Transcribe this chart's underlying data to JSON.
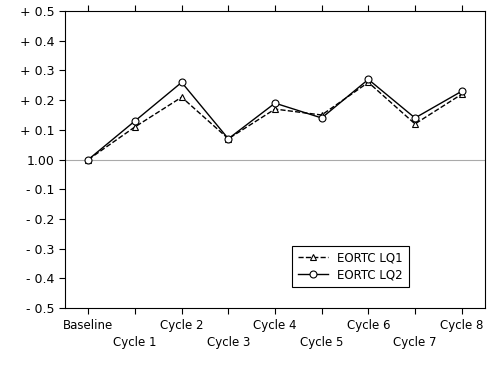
{
  "x_positions": [
    0,
    1,
    2,
    3,
    4,
    5,
    6,
    7,
    8
  ],
  "lq1_values": [
    1.0,
    1.11,
    1.21,
    1.07,
    1.17,
    1.15,
    1.26,
    1.12,
    1.22
  ],
  "lq2_values": [
    1.0,
    1.13,
    1.26,
    1.07,
    1.19,
    1.14,
    1.27,
    1.14,
    1.23
  ],
  "baseline_y": 1.0,
  "ylim": [
    0.5,
    1.5
  ],
  "yticks": [
    0.5,
    0.6,
    0.7,
    0.8,
    0.9,
    1.0,
    1.1,
    1.2,
    1.3,
    1.4,
    1.5
  ],
  "ytick_labels": [
    "- 0.5",
    "- 0.4",
    "- 0.3",
    "- 0.2",
    "- 0.1",
    "1.00",
    "+ 0.1",
    "+ 0.2",
    "+ 0.3",
    "+ 0.4",
    "+ 0.5"
  ],
  "xlabel_top": [
    "Baseline",
    "",
    "Cycle 2",
    "",
    "Cycle 4",
    "",
    "Cycle 6",
    "",
    "Cycle 8"
  ],
  "xlabel_bottom": [
    "",
    "Cycle 1",
    "",
    "Cycle 3",
    "",
    "Cycle 5",
    "",
    "Cycle 7",
    ""
  ],
  "lq1_label": "EORTC LQ1",
  "lq2_label": "EORTC LQ2",
  "background_color": "#ffffff",
  "xlim": [
    -0.5,
    8.5
  ]
}
